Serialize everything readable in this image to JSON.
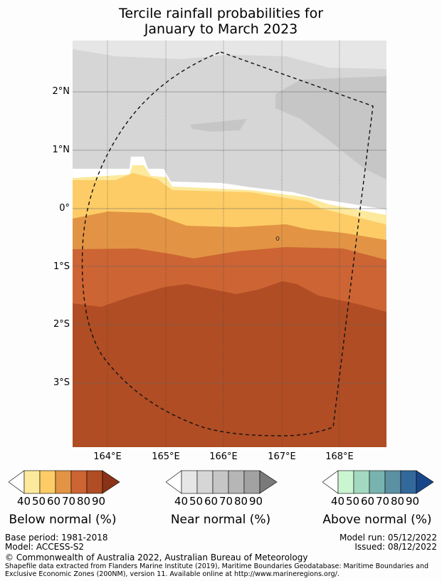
{
  "title": {
    "line1": "Tercile rainfall probabilities for",
    "line2": "January to March 2023"
  },
  "axes": {
    "lat_labels": [
      "2°N",
      "1°N",
      "0°",
      "1°S",
      "2°S",
      "3°S"
    ],
    "lon_labels": [
      "164°E",
      "165°E",
      "166°E",
      "167°E",
      "168°E"
    ]
  },
  "colorbars": {
    "below": {
      "label": "Below normal (%)",
      "ticks": [
        "40",
        "50",
        "60",
        "70",
        "80",
        "90"
      ],
      "colors": [
        "#ffffff",
        "#fde99c",
        "#fdcc66",
        "#e29444",
        "#cd6433",
        "#b04d24",
        "#8a3317"
      ]
    },
    "near": {
      "label": "Near normal (%)",
      "ticks": [
        "40",
        "50",
        "60",
        "70",
        "80",
        "90"
      ],
      "colors": [
        "#ffffff",
        "#e6e6e6",
        "#d6d6d6",
        "#c6c6c6",
        "#b6b6b6",
        "#a2a2a2",
        "#7a7a7a"
      ]
    },
    "above": {
      "label": "Above normal (%)",
      "ticks": [
        "40",
        "50",
        "60",
        "70",
        "80",
        "90"
      ],
      "colors": [
        "#ffffff",
        "#cbf5d0",
        "#a2d9c0",
        "#78b3b0",
        "#5b91a2",
        "#33689a",
        "#17478a"
      ]
    }
  },
  "footer": {
    "base_period": "Base period: 1981-2018",
    "model": "Model: ACCESS-S2",
    "model_run": "Model run: 05/12/2022",
    "issued": "Issued: 08/12/2022",
    "copyright": "© Commonwealth of Australia 2022, Australian Bureau of Meteorology",
    "shapefile_line1": "Shapefile data extracted from Flanders Marine Institute (2019), Maritime Boundaries Geodatabase: Maritime Boundaries and",
    "shapefile_line2": "Exclusive Economic Zones (200NM), version 11. Available online at http://www.marineregions.org/."
  }
}
